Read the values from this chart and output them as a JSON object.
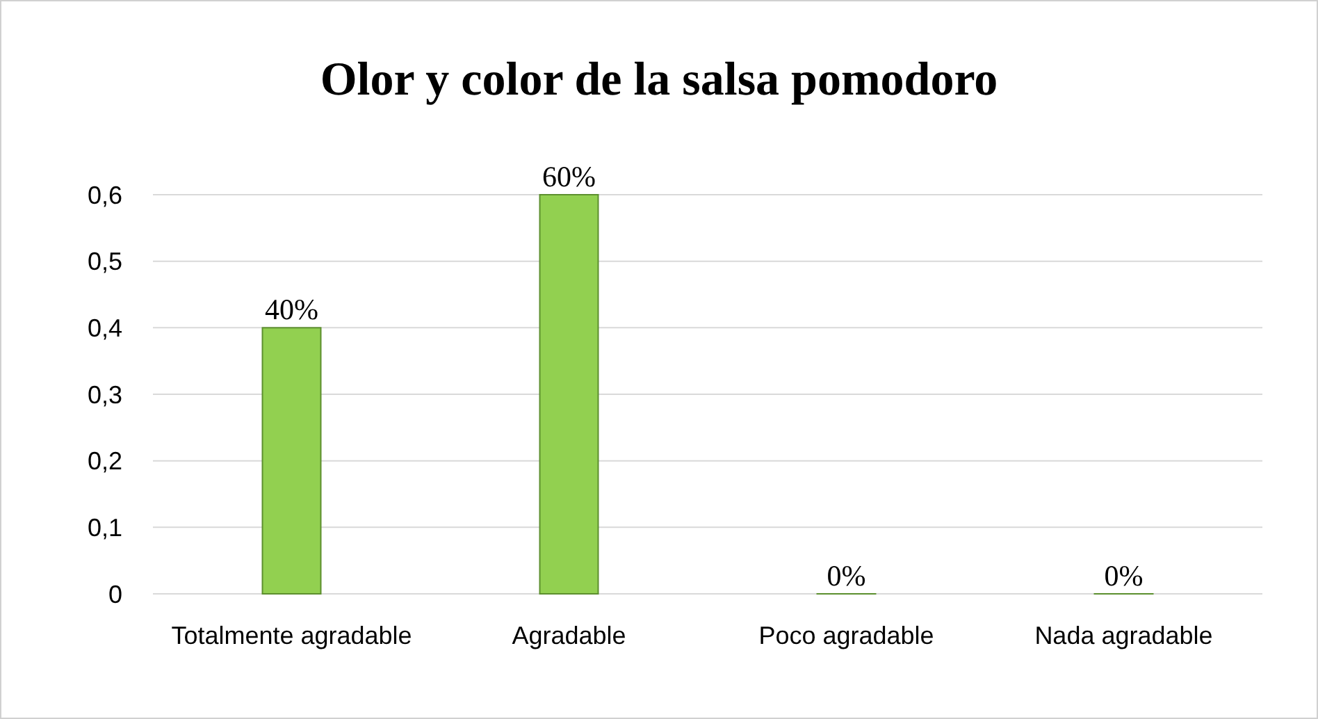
{
  "chart_data": {
    "type": "bar",
    "title": "Olor y color de la salsa pomodoro",
    "categories": [
      "Totalmente agradable",
      "Agradable",
      "Poco agradable",
      "Nada agradable"
    ],
    "values": [
      0.4,
      0.6,
      0,
      0
    ],
    "value_labels": [
      "40%",
      "60%",
      "0%",
      "0%"
    ],
    "color": "#92d050",
    "ylim": [
      0,
      0.6
    ],
    "yticks": [
      0,
      {
        "value": 0.1,
        "label": "0,1"
      },
      {
        "value": 0.2,
        "label": "0,2"
      },
      {
        "value": 0.3,
        "label": "0,3"
      },
      {
        "value": 0.4,
        "label": "0,4"
      },
      {
        "value": 0.5,
        "label": "0,5"
      },
      {
        "value": 0.6,
        "label": "0,6"
      }
    ],
    "grid": "y"
  }
}
